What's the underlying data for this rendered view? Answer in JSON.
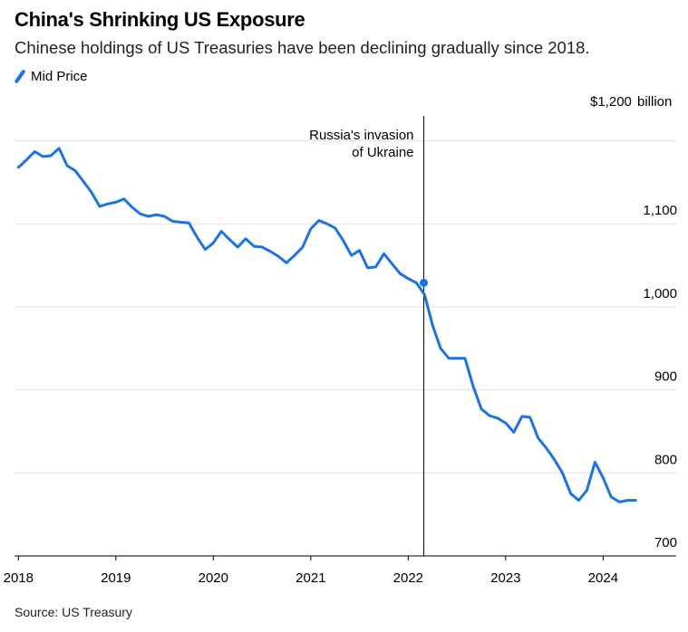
{
  "header": {
    "title": "China's Shrinking US Exposure",
    "subtitle": "Chinese holdings of US Treasuries have been declining gradually since 2018."
  },
  "legend": {
    "label": "Mid Price"
  },
  "footer": {
    "source": "Source: US Treasury"
  },
  "colors": {
    "series": "#1a73e8",
    "grid": "#e3e3e3",
    "axis": "#000000"
  },
  "chart_data": {
    "type": "line",
    "ylim": [
      700,
      1230
    ],
    "xlim": [
      2017.96,
      2024.75
    ],
    "y_ticks": [
      {
        "value": 1200,
        "label": "$1,200",
        "unit": "billion"
      },
      {
        "value": 1100,
        "label": "1,100"
      },
      {
        "value": 1000,
        "label": "1,000"
      },
      {
        "value": 900,
        "label": "900"
      },
      {
        "value": 800,
        "label": "800"
      },
      {
        "value": 700,
        "label": "700"
      }
    ],
    "x_ticks": [
      {
        "value": 2018,
        "label": "2018"
      },
      {
        "value": 2019,
        "label": "2019"
      },
      {
        "value": 2020,
        "label": "2020"
      },
      {
        "value": 2021,
        "label": "2021"
      },
      {
        "value": 2022,
        "label": "2022"
      },
      {
        "value": 2023,
        "label": "2023"
      },
      {
        "value": 2024,
        "label": "2024"
      }
    ],
    "annotation": {
      "x": 2022.16,
      "lines": [
        "Russia's invasion",
        "of Ukraine"
      ],
      "marker_y": 1029
    },
    "series": [
      {
        "name": "Mid Price",
        "x": [
          2018.0,
          2018.083,
          2018.167,
          2018.25,
          2018.333,
          2018.417,
          2018.5,
          2018.583,
          2018.667,
          2018.75,
          2018.833,
          2018.917,
          2019.0,
          2019.083,
          2019.167,
          2019.25,
          2019.333,
          2019.417,
          2019.5,
          2019.583,
          2019.667,
          2019.75,
          2019.833,
          2019.917,
          2020.0,
          2020.083,
          2020.167,
          2020.25,
          2020.333,
          2020.417,
          2020.5,
          2020.583,
          2020.667,
          2020.75,
          2020.833,
          2020.917,
          2021.0,
          2021.083,
          2021.167,
          2021.25,
          2021.333,
          2021.417,
          2021.5,
          2021.583,
          2021.667,
          2021.75,
          2021.833,
          2021.917,
          2022.0,
          2022.083,
          2022.167,
          2022.25,
          2022.333,
          2022.417,
          2022.5,
          2022.583,
          2022.667,
          2022.75,
          2022.833,
          2022.917,
          2023.0,
          2023.083,
          2023.167,
          2023.25,
          2023.333,
          2023.417,
          2023.5,
          2023.583,
          2023.667,
          2023.75,
          2023.833,
          2023.917,
          2024.0,
          2024.083,
          2024.167,
          2024.25,
          2024.333
        ],
        "values": [
          1168,
          1177,
          1187,
          1181,
          1182,
          1191,
          1170,
          1164,
          1151,
          1138,
          1121,
          1124,
          1126,
          1130,
          1120,
          1112,
          1109,
          1111,
          1109,
          1103,
          1102,
          1101,
          1084,
          1069,
          1077,
          1091,
          1081,
          1072,
          1082,
          1073,
          1072,
          1067,
          1061,
          1053,
          1062,
          1072,
          1094,
          1104,
          1100,
          1095,
          1080,
          1062,
          1068,
          1047,
          1048,
          1064,
          1052,
          1040,
          1034,
          1029,
          1015,
          978,
          950,
          938,
          938,
          938,
          904,
          877,
          869,
          866,
          860,
          849,
          868,
          867,
          842,
          830,
          816,
          800,
          775,
          767,
          779,
          813,
          794,
          771,
          765,
          767,
          767
        ]
      }
    ]
  }
}
